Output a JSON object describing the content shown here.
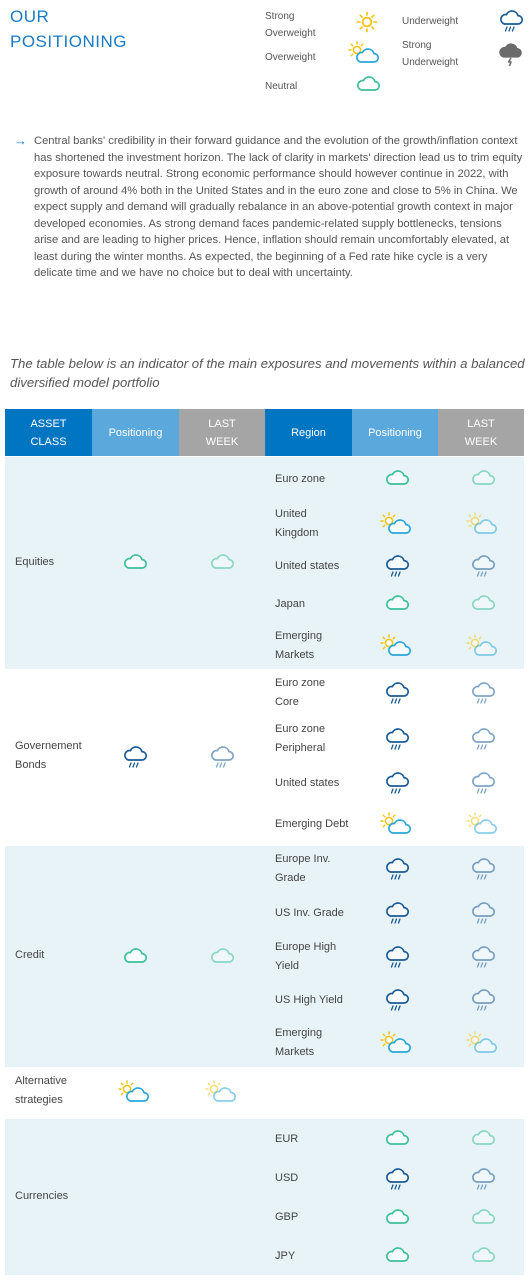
{
  "header": {
    "title_line1": "OUR",
    "title_line2": "POSITIONING"
  },
  "legend": {
    "strong_overweight_1": "Strong",
    "strong_overweight_2": "Overweight",
    "overweight": "Overweight",
    "neutral": "Neutral",
    "underweight": "Underweight",
    "strong_underweight_1": "Strong",
    "strong_underweight_2": "Underweight"
  },
  "intro": {
    "arrow": "→",
    "text": "Central banks' credibility in their forward guidance and the evolution of the growth/inflation context has shortened the investment horizon. The lack of clarity in markets' direction lead us to trim equity exposure towards neutral. Strong economic performance should however continue in 2022, with growth of around 4% both in the United States and in the euro zone and close to 5% in China. We expect supply and demand will gradually rebalance in an above-potential growth context in major developed economies. As strong demand faces pandemic-related supply bottlenecks, tensions arise and are leading to higher prices. Hence, inflation should remain uncomfortably elevated, at least during the winter months. As expected, the beginning of a Fed rate hike cycle is a very delicate time and we have no choice but to deal with uncertainty."
  },
  "subtitle": "The table below is an indicator of the main exposures and movements within a balanced diversified model portfolio",
  "table": {
    "headers": {
      "asset_class_1": "ASSET",
      "asset_class_2": "CLASS",
      "positioning": "Positioning",
      "last_week_1": "LAST",
      "last_week_2": "WEEK",
      "region": "Region",
      "region_positioning": "Positioning",
      "region_last_week_1": "LAST",
      "region_last_week_2": "WEEK"
    },
    "colors": {
      "dark_blue": "#0075c2",
      "mid_blue": "#5aa8dc",
      "gray": "#a5a5a5",
      "band": "#e8f3f8",
      "neutral": "#3cbf9a",
      "overweight_cloud": "#2aa7d9",
      "sun": "#f5c200",
      "underweight": "#1b5b94",
      "strong_underweight": "#6b6b6b"
    },
    "groups": [
      {
        "name_1": "Equities",
        "name_2": "",
        "positioning": "neutral-icon",
        "last_week": "neutral-icon",
        "rows": [
          {
            "region_1": "Euro zone",
            "region_2": "",
            "positioning": "neutral-icon",
            "last_week": "neutral-icon"
          },
          {
            "region_1": "United",
            "region_2": "Kingdom",
            "positioning": "overweight-icon",
            "last_week": "overweight-icon"
          },
          {
            "region_1": "United states",
            "region_2": "",
            "positioning": "underweight-icon",
            "last_week": "underweight-icon"
          },
          {
            "region_1": "Japan",
            "region_2": "",
            "positioning": "neutral-icon",
            "last_week": "neutral-icon"
          },
          {
            "region_1": "Emerging",
            "region_2": "Markets",
            "positioning": "overweight-icon",
            "last_week": "overweight-icon"
          }
        ]
      },
      {
        "name_1": "Governement",
        "name_2": "Bonds",
        "positioning": "underweight-icon",
        "last_week": "underweight-icon",
        "rows": [
          {
            "region_1": "Euro zone",
            "region_2": "Core",
            "positioning": "underweight-icon",
            "last_week": "underweight-icon"
          },
          {
            "region_1": "Euro zone",
            "region_2": "Peripheral",
            "positioning": "underweight-icon",
            "last_week": "underweight-icon"
          },
          {
            "region_1": "United states",
            "region_2": "",
            "positioning": "underweight-icon",
            "last_week": "underweight-icon"
          },
          {
            "region_1": "Emerging Debt",
            "region_2": "",
            "positioning": "overweight-icon",
            "last_week": "overweight-icon"
          }
        ]
      },
      {
        "name_1": "Credit",
        "name_2": "",
        "positioning": "neutral-icon",
        "last_week": "neutral-icon",
        "rows": [
          {
            "region_1": "Europe Inv.",
            "region_2": "Grade",
            "positioning": "underweight-icon",
            "last_week": "underweight-icon"
          },
          {
            "region_1": "US Inv. Grade",
            "region_2": "",
            "positioning": "underweight-icon",
            "last_week": "underweight-icon"
          },
          {
            "region_1": "Europe High",
            "region_2": "Yield",
            "positioning": "underweight-icon",
            "last_week": "underweight-icon"
          },
          {
            "region_1": "US High Yield",
            "region_2": "",
            "positioning": "underweight-icon",
            "last_week": "underweight-icon"
          },
          {
            "region_1": "Emerging",
            "region_2": "Markets",
            "positioning": "overweight-icon",
            "last_week": "overweight-icon"
          }
        ]
      },
      {
        "name_1": "Alternative",
        "name_2": "strategies",
        "positioning": "overweight-icon",
        "last_week": "overweight-icon",
        "rows": []
      },
      {
        "name_1": "Currencies",
        "name_2": "",
        "positioning": "",
        "last_week": "",
        "rows": [
          {
            "region_1": "EUR",
            "region_2": "",
            "positioning": "neutral-icon",
            "last_week": "neutral-icon"
          },
          {
            "region_1": "USD",
            "region_2": "",
            "positioning": "underweight-icon",
            "last_week": "underweight-icon"
          },
          {
            "region_1": "GBP",
            "region_2": "",
            "positioning": "neutral-icon",
            "last_week": "neutral-icon"
          },
          {
            "region_1": "JPY",
            "region_2": "",
            "positioning": "neutral-icon",
            "last_week": "neutral-icon"
          }
        ]
      }
    ]
  }
}
